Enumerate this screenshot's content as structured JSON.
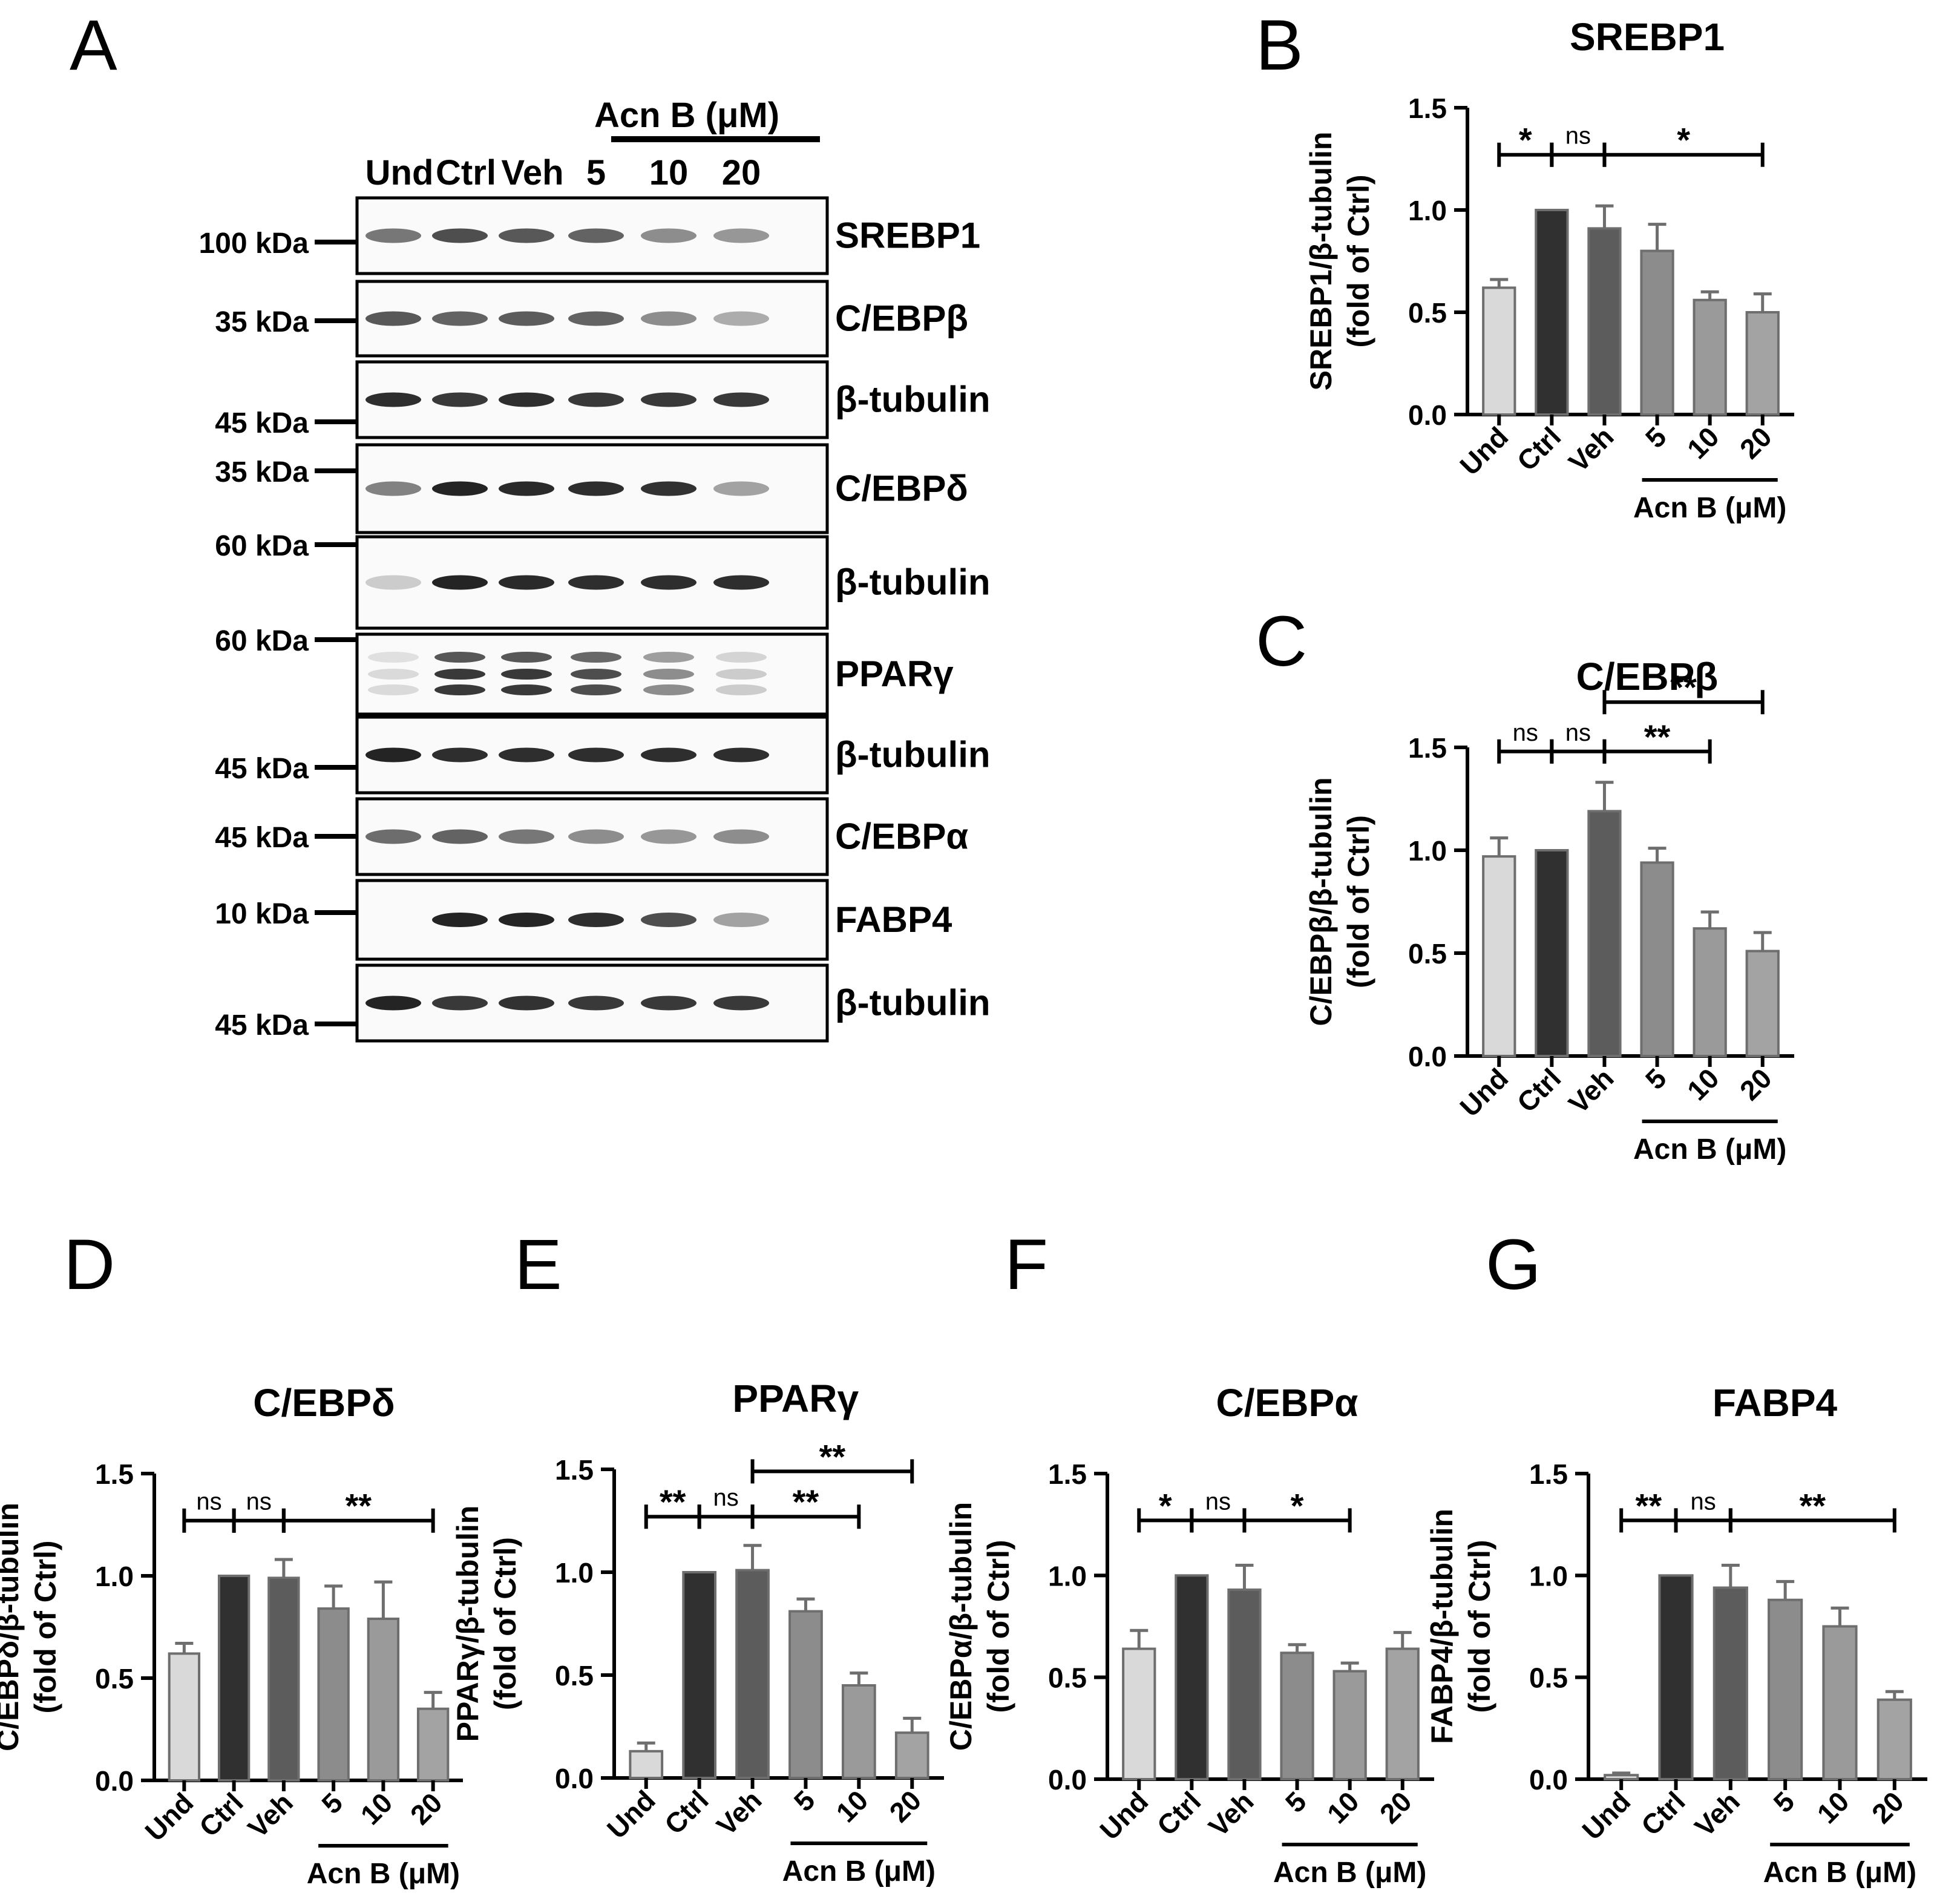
{
  "figure": {
    "panel_letters": [
      "A",
      "B",
      "C",
      "D",
      "E",
      "F",
      "G"
    ]
  },
  "colors": {
    "Und": "#d9d9d9",
    "Ctrl": "#303030",
    "Veh": "#5c5c5c",
    "5": "#8c8c8c",
    "10": "#9a9a9a",
    "20": "#a3a3a3",
    "edge": "#6e6e6e"
  },
  "blot": {
    "treatment_label": "Acn B (μM)",
    "lane_labels": [
      "Und",
      "Ctrl",
      "Veh",
      "5",
      "10",
      "20"
    ],
    "strips": [
      {
        "protein": "SREBP1",
        "markers": [
          "100 kDa"
        ],
        "intensity": [
          0.55,
          0.75,
          0.7,
          0.65,
          0.45,
          0.4
        ]
      },
      {
        "protein": "C/EBPβ",
        "markers": [
          "35 kDa"
        ],
        "intensity": [
          0.7,
          0.65,
          0.68,
          0.65,
          0.45,
          0.3
        ]
      },
      {
        "protein": "β-tubulin",
        "markers": [
          "45 kDa"
        ],
        "intensity": [
          0.9,
          0.85,
          0.9,
          0.85,
          0.85,
          0.85
        ]
      },
      {
        "protein": "C/EBPδ",
        "markers": [
          "35 kDa"
        ],
        "intensity": [
          0.5,
          0.95,
          0.92,
          0.9,
          0.88,
          0.35
        ]
      },
      {
        "protein": "β-tubulin",
        "markers": [
          "60 kDa"
        ],
        "intensity": [
          0.15,
          0.95,
          0.92,
          0.9,
          0.9,
          0.9
        ]
      },
      {
        "protein": "PPARγ",
        "markers": [
          "60 kDa"
        ],
        "intensity": [
          0.08,
          0.85,
          0.85,
          0.75,
          0.45,
          0.15
        ]
      },
      {
        "protein": "β-tubulin",
        "markers": [
          "45 kDa"
        ],
        "intensity": [
          0.95,
          0.9,
          0.9,
          0.9,
          0.9,
          0.9
        ]
      },
      {
        "protein": "C/EBPα",
        "markers": [
          "45 kDa"
        ],
        "intensity": [
          0.6,
          0.65,
          0.55,
          0.45,
          0.4,
          0.45
        ]
      },
      {
        "protein": "FABP4",
        "markers": [
          "10 kDa"
        ],
        "intensity": [
          0.02,
          0.95,
          0.95,
          0.9,
          0.75,
          0.35
        ]
      },
      {
        "protein": "β-tubulin",
        "markers": [
          "45 kDa"
        ],
        "intensity": [
          0.95,
          0.85,
          0.88,
          0.85,
          0.85,
          0.85
        ]
      }
    ]
  },
  "chart_data": [
    {
      "panel": "B",
      "type": "bar",
      "title": "SREBP1",
      "ylabel_line1": "SREBP1/β-tubulin",
      "ylabel_line2": "(fold of Ctrl)",
      "ylim": [
        0,
        1.5
      ],
      "yticks": [
        "0.0",
        "0.5",
        "1.0",
        "1.5"
      ],
      "ytick_values": [
        0,
        0.5,
        1.0,
        1.5
      ],
      "categories": [
        "Und",
        "Ctrl",
        "Veh",
        "5",
        "10",
        "20"
      ],
      "values": [
        0.62,
        1.0,
        0.91,
        0.8,
        0.56,
        0.5
      ],
      "errors": [
        0.04,
        0.0,
        0.11,
        0.13,
        0.04,
        0.09
      ],
      "xgroup_label": "Acn B (μM)",
      "significance": [
        {
          "from": 0,
          "to": 1,
          "label": "*",
          "level": 1.27
        },
        {
          "from": 1,
          "to": 2,
          "label": "ns",
          "level": 1.27
        },
        {
          "from": 2,
          "to": 5,
          "label": "*",
          "level": 1.27
        }
      ]
    },
    {
      "panel": "C",
      "type": "bar",
      "title": "C/EBPβ",
      "ylabel_line1": "C/EBPβ/β-tubulin",
      "ylabel_line2": "(fold of Ctrl)",
      "ylim": [
        0,
        1.5
      ],
      "yticks": [
        "0.0",
        "0.5",
        "1.0",
        "1.5"
      ],
      "ytick_values": [
        0,
        0.5,
        1.0,
        1.5
      ],
      "categories": [
        "Und",
        "Ctrl",
        "Veh",
        "5",
        "10",
        "20"
      ],
      "values": [
        0.97,
        1.0,
        1.19,
        0.94,
        0.62,
        0.51
      ],
      "errors": [
        0.09,
        0.0,
        0.14,
        0.07,
        0.08,
        0.09
      ],
      "xgroup_label": "Acn B (μM)",
      "significance": [
        {
          "from": 0,
          "to": 1,
          "label": "ns",
          "level": 1.48
        },
        {
          "from": 1,
          "to": 2,
          "label": "ns",
          "level": 1.48
        },
        {
          "from": 2,
          "to": 4,
          "label": "**",
          "level": 1.48
        },
        {
          "from": 2,
          "to": 5,
          "label": "**",
          "level": 1.72
        }
      ]
    },
    {
      "panel": "D",
      "type": "bar",
      "title": "C/EBPδ",
      "ylabel_line1": "C/EBPδ/β-tubulin",
      "ylabel_line2": "(fold of Ctrl)",
      "ylim": [
        0,
        1.5
      ],
      "yticks": [
        "0.0",
        "0.5",
        "1.0",
        "1.5"
      ],
      "ytick_values": [
        0,
        0.5,
        1.0,
        1.5
      ],
      "categories": [
        "Und",
        "Ctrl",
        "Veh",
        "5",
        "10",
        "20"
      ],
      "values": [
        0.62,
        1.0,
        0.99,
        0.84,
        0.79,
        0.35
      ],
      "errors": [
        0.05,
        0.0,
        0.09,
        0.11,
        0.18,
        0.08
      ],
      "xgroup_label": "Acn B (μM)",
      "significance": [
        {
          "from": 0,
          "to": 1,
          "label": "ns",
          "level": 1.27
        },
        {
          "from": 1,
          "to": 2,
          "label": "ns",
          "level": 1.27
        },
        {
          "from": 2,
          "to": 5,
          "label": "**",
          "level": 1.27
        }
      ]
    },
    {
      "panel": "E",
      "type": "bar",
      "title": "PPARγ",
      "ylabel_line1": "PPARγ/β-tubulin",
      "ylabel_line2": "(fold of Ctrl)",
      "ylim": [
        0,
        1.5
      ],
      "yticks": [
        "0.0",
        "0.5",
        "1.0",
        "1.5"
      ],
      "ytick_values": [
        0,
        0.5,
        1.0,
        1.5
      ],
      "categories": [
        "Und",
        "Ctrl",
        "Veh",
        "5",
        "10",
        "20"
      ],
      "values": [
        0.13,
        1.0,
        1.01,
        0.81,
        0.45,
        0.22
      ],
      "errors": [
        0.04,
        0.0,
        0.12,
        0.06,
        0.06,
        0.07
      ],
      "xgroup_label": "Acn B (μM)",
      "significance": [
        {
          "from": 0,
          "to": 1,
          "label": "**",
          "level": 1.27
        },
        {
          "from": 1,
          "to": 2,
          "label": "ns",
          "level": 1.27
        },
        {
          "from": 2,
          "to": 4,
          "label": "**",
          "level": 1.27
        },
        {
          "from": 2,
          "to": 5,
          "label": "**",
          "level": 1.49
        }
      ]
    },
    {
      "panel": "F",
      "type": "bar",
      "title": "C/EBPα",
      "ylabel_line1": "C/EBPα/β-tubulin",
      "ylabel_line2": "(fold of Ctrl)",
      "ylim": [
        0,
        1.5
      ],
      "yticks": [
        "0.0",
        "0.5",
        "1.0",
        "1.5"
      ],
      "ytick_values": [
        0,
        0.5,
        1.0,
        1.5
      ],
      "categories": [
        "Und",
        "Ctrl",
        "Veh",
        "5",
        "10",
        "20"
      ],
      "values": [
        0.64,
        1.0,
        0.93,
        0.62,
        0.53,
        0.64
      ],
      "errors": [
        0.09,
        0.0,
        0.12,
        0.04,
        0.04,
        0.08
      ],
      "xgroup_label": "Acn B (μM)",
      "significance": [
        {
          "from": 0,
          "to": 1,
          "label": "*",
          "level": 1.27
        },
        {
          "from": 1,
          "to": 2,
          "label": "ns",
          "level": 1.27
        },
        {
          "from": 2,
          "to": 4,
          "label": "*",
          "level": 1.27
        }
      ]
    },
    {
      "panel": "G",
      "type": "bar",
      "title": "FABP4",
      "ylabel_line1": "FABP4/β-tubulin",
      "ylabel_line2": "(fold of Ctrl)",
      "ylim": [
        0,
        1.5
      ],
      "yticks": [
        "0.0",
        "0.5",
        "1.0",
        "1.5"
      ],
      "ytick_values": [
        0,
        0.5,
        1.0,
        1.5
      ],
      "categories": [
        "Und",
        "Ctrl",
        "Veh",
        "5",
        "10",
        "20"
      ],
      "values": [
        0.02,
        1.0,
        0.94,
        0.88,
        0.75,
        0.39
      ],
      "errors": [
        0.01,
        0.0,
        0.11,
        0.09,
        0.09,
        0.04
      ],
      "xgroup_label": "Acn B (μM)",
      "significance": [
        {
          "from": 0,
          "to": 1,
          "label": "**",
          "level": 1.27
        },
        {
          "from": 1,
          "to": 2,
          "label": "ns",
          "level": 1.27
        },
        {
          "from": 2,
          "to": 5,
          "label": "**",
          "level": 1.27
        }
      ]
    }
  ]
}
